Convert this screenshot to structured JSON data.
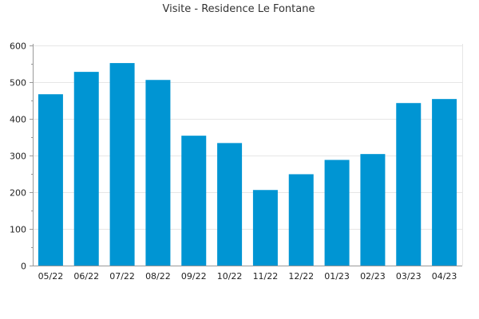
{
  "chart_data": {
    "type": "bar",
    "title": "Visite - Residence Le Fontane",
    "xlabel": "",
    "ylabel": "",
    "categories": [
      "05/22",
      "06/22",
      "07/22",
      "08/22",
      "09/22",
      "10/22",
      "11/22",
      "12/22",
      "01/23",
      "02/23",
      "03/23",
      "04/23"
    ],
    "values": [
      467,
      528,
      552,
      506,
      354,
      334,
      206,
      249,
      288,
      304,
      443,
      454
    ],
    "ylim": [
      0,
      600
    ],
    "yticks": [
      0,
      100,
      200,
      300,
      400,
      500,
      600
    ],
    "grid": true,
    "legend": "none",
    "bar_color": "#0095d3"
  }
}
